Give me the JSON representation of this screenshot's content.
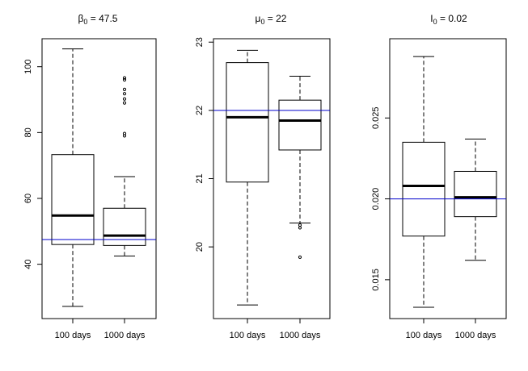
{
  "chart_data": [
    {
      "type": "boxplot",
      "title": "β₀ = 47.5",
      "title_base": "β",
      "title_sub": "0",
      "title_rest": " = 47.5",
      "categories": [
        "100 days",
        "1000 days"
      ],
      "ylim": [
        23.5,
        108.5
      ],
      "yticks": [
        40,
        60,
        80,
        100
      ],
      "reference_line": {
        "value": 47.5,
        "color": "#0000cc"
      },
      "boxes": [
        {
          "label": "100 days",
          "whisker_low": 27.2,
          "q1": 46.0,
          "median": 54.8,
          "q3": 73.3,
          "whisker_high": 105.4,
          "outliers": []
        },
        {
          "label": "1000 days",
          "whisker_low": 42.5,
          "q1": 45.7,
          "median": 48.7,
          "q3": 57.0,
          "whisker_high": 66.6,
          "outliers": [
            79.0,
            79.7,
            89.0,
            90.2,
            91.8,
            93.1,
            96.0,
            96.6
          ]
        }
      ]
    },
    {
      "type": "boxplot",
      "title": "μ₀ = 22",
      "title_base": "μ",
      "title_sub": "0",
      "title_rest": " = 22",
      "categories": [
        "100 days",
        "1000 days"
      ],
      "ylim": [
        18.95,
        23.05
      ],
      "yticks": [
        20,
        21,
        22,
        23
      ],
      "reference_line": {
        "value": 22.0,
        "color": "#0000cc"
      },
      "boxes": [
        {
          "label": "100 days",
          "whisker_low": 19.15,
          "q1": 20.95,
          "median": 21.9,
          "q3": 22.7,
          "whisker_high": 22.88,
          "outliers": []
        },
        {
          "label": "1000 days",
          "whisker_low": 20.35,
          "q1": 21.42,
          "median": 21.85,
          "q3": 22.15,
          "whisker_high": 22.5,
          "outliers": [
            20.28,
            20.32,
            19.85
          ]
        }
      ]
    },
    {
      "type": "boxplot",
      "title": "I₀ = 0.02",
      "title_base": "I",
      "title_sub": "0",
      "title_rest": " = 0.02",
      "categories": [
        "100 days",
        "1000 days"
      ],
      "ylim": [
        0.0126,
        0.0299
      ],
      "yticks": [
        0.015,
        0.02,
        0.025
      ],
      "reference_line": {
        "value": 0.02,
        "color": "#0000cc"
      },
      "boxes": [
        {
          "label": "100 days",
          "whisker_low": 0.0133,
          "q1": 0.0177,
          "median": 0.0208,
          "q3": 0.0235,
          "whisker_high": 0.0288,
          "outliers": []
        },
        {
          "label": "1000 days",
          "whisker_low": 0.0162,
          "q1": 0.0189,
          "median": 0.0201,
          "q3": 0.0217,
          "whisker_high": 0.0237,
          "outliers": []
        }
      ]
    }
  ]
}
